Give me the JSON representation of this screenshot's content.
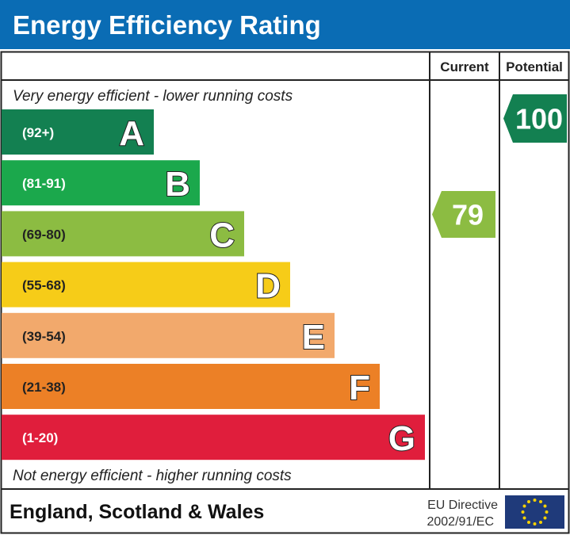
{
  "header": {
    "title": "Energy Efficiency Rating",
    "background": "#0a6cb4"
  },
  "columns": {
    "current": "Current",
    "potential": "Potential"
  },
  "top_note": "Very energy efficient - lower running costs",
  "bottom_note": "Not energy efficient - higher running costs",
  "footer": {
    "region": "England, Scotland & Wales",
    "directive_line1": "EU Directive",
    "directive_line2": "2002/91/EC",
    "flag": "eu-flag-icon"
  },
  "chart_data": {
    "type": "bar",
    "bands": [
      {
        "letter": "A",
        "range": "(92+)",
        "color": "#138051"
      },
      {
        "letter": "B",
        "range": "(81-91)",
        "color": "#1ba84c"
      },
      {
        "letter": "C",
        "range": "(69-80)",
        "color": "#8cbc42"
      },
      {
        "letter": "D",
        "range": "(55-68)",
        "color": "#f6cc18"
      },
      {
        "letter": "E",
        "range": "(39-54)",
        "color": "#f2a96c"
      },
      {
        "letter": "F",
        "range": "(21-38)",
        "color": "#ec8026"
      },
      {
        "letter": "G",
        "range": "(1-20)",
        "color": "#e01e3c"
      }
    ],
    "current": {
      "value": "79",
      "band": "C"
    },
    "potential": {
      "value": "100",
      "band": "A"
    }
  }
}
